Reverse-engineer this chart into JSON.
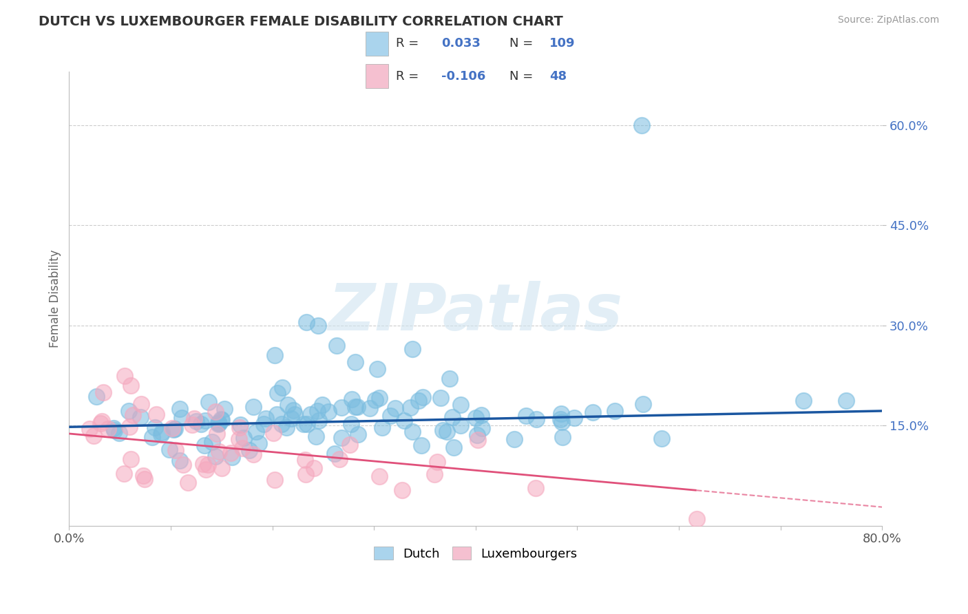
{
  "title": "DUTCH VS LUXEMBOURGER FEMALE DISABILITY CORRELATION CHART",
  "source": "Source: ZipAtlas.com",
  "ylabel": "Female Disability",
  "x_min": 0.0,
  "x_max": 0.8,
  "y_min": 0.0,
  "y_max": 0.68,
  "y_ticks": [
    0.15,
    0.3,
    0.45,
    0.6
  ],
  "y_tick_labels": [
    "15.0%",
    "30.0%",
    "45.0%",
    "60.0%"
  ],
  "x_ticks": [
    0.0,
    0.1,
    0.2,
    0.3,
    0.4,
    0.5,
    0.6,
    0.7,
    0.8
  ],
  "x_tick_labels": [
    "0.0%",
    "",
    "",
    "",
    "",
    "",
    "",
    "",
    "80.0%"
  ],
  "legend_R1": "0.033",
  "legend_N1": "109",
  "legend_R2": "-0.106",
  "legend_N2": "48",
  "blue_color": "#7bbde0",
  "pink_color": "#f5a8be",
  "blue_line_color": "#1a56a0",
  "pink_line_color": "#e0507a",
  "dutch_R": 0.033,
  "dutch_N": 109,
  "lux_R": -0.106,
  "lux_N": 48,
  "watermark": "ZIPatlas",
  "background_color": "#ffffff",
  "seed": 42
}
